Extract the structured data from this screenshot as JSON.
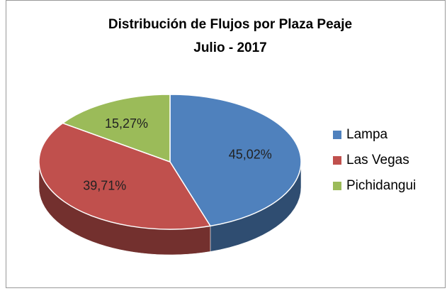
{
  "chart_data": {
    "type": "pie",
    "title": "Distribución de Flujos por Plaza Peaje",
    "subtitle": "Julio - 2017",
    "categories": [
      "Lampa",
      "Las Vegas",
      "Pichidangui"
    ],
    "values": [
      45.02,
      39.71,
      15.27
    ],
    "value_labels": [
      "45,02%",
      "39,71%",
      "15,27%"
    ],
    "colors": [
      "#4f81bd",
      "#c0504d",
      "#9bbb59"
    ],
    "legend": "right"
  }
}
